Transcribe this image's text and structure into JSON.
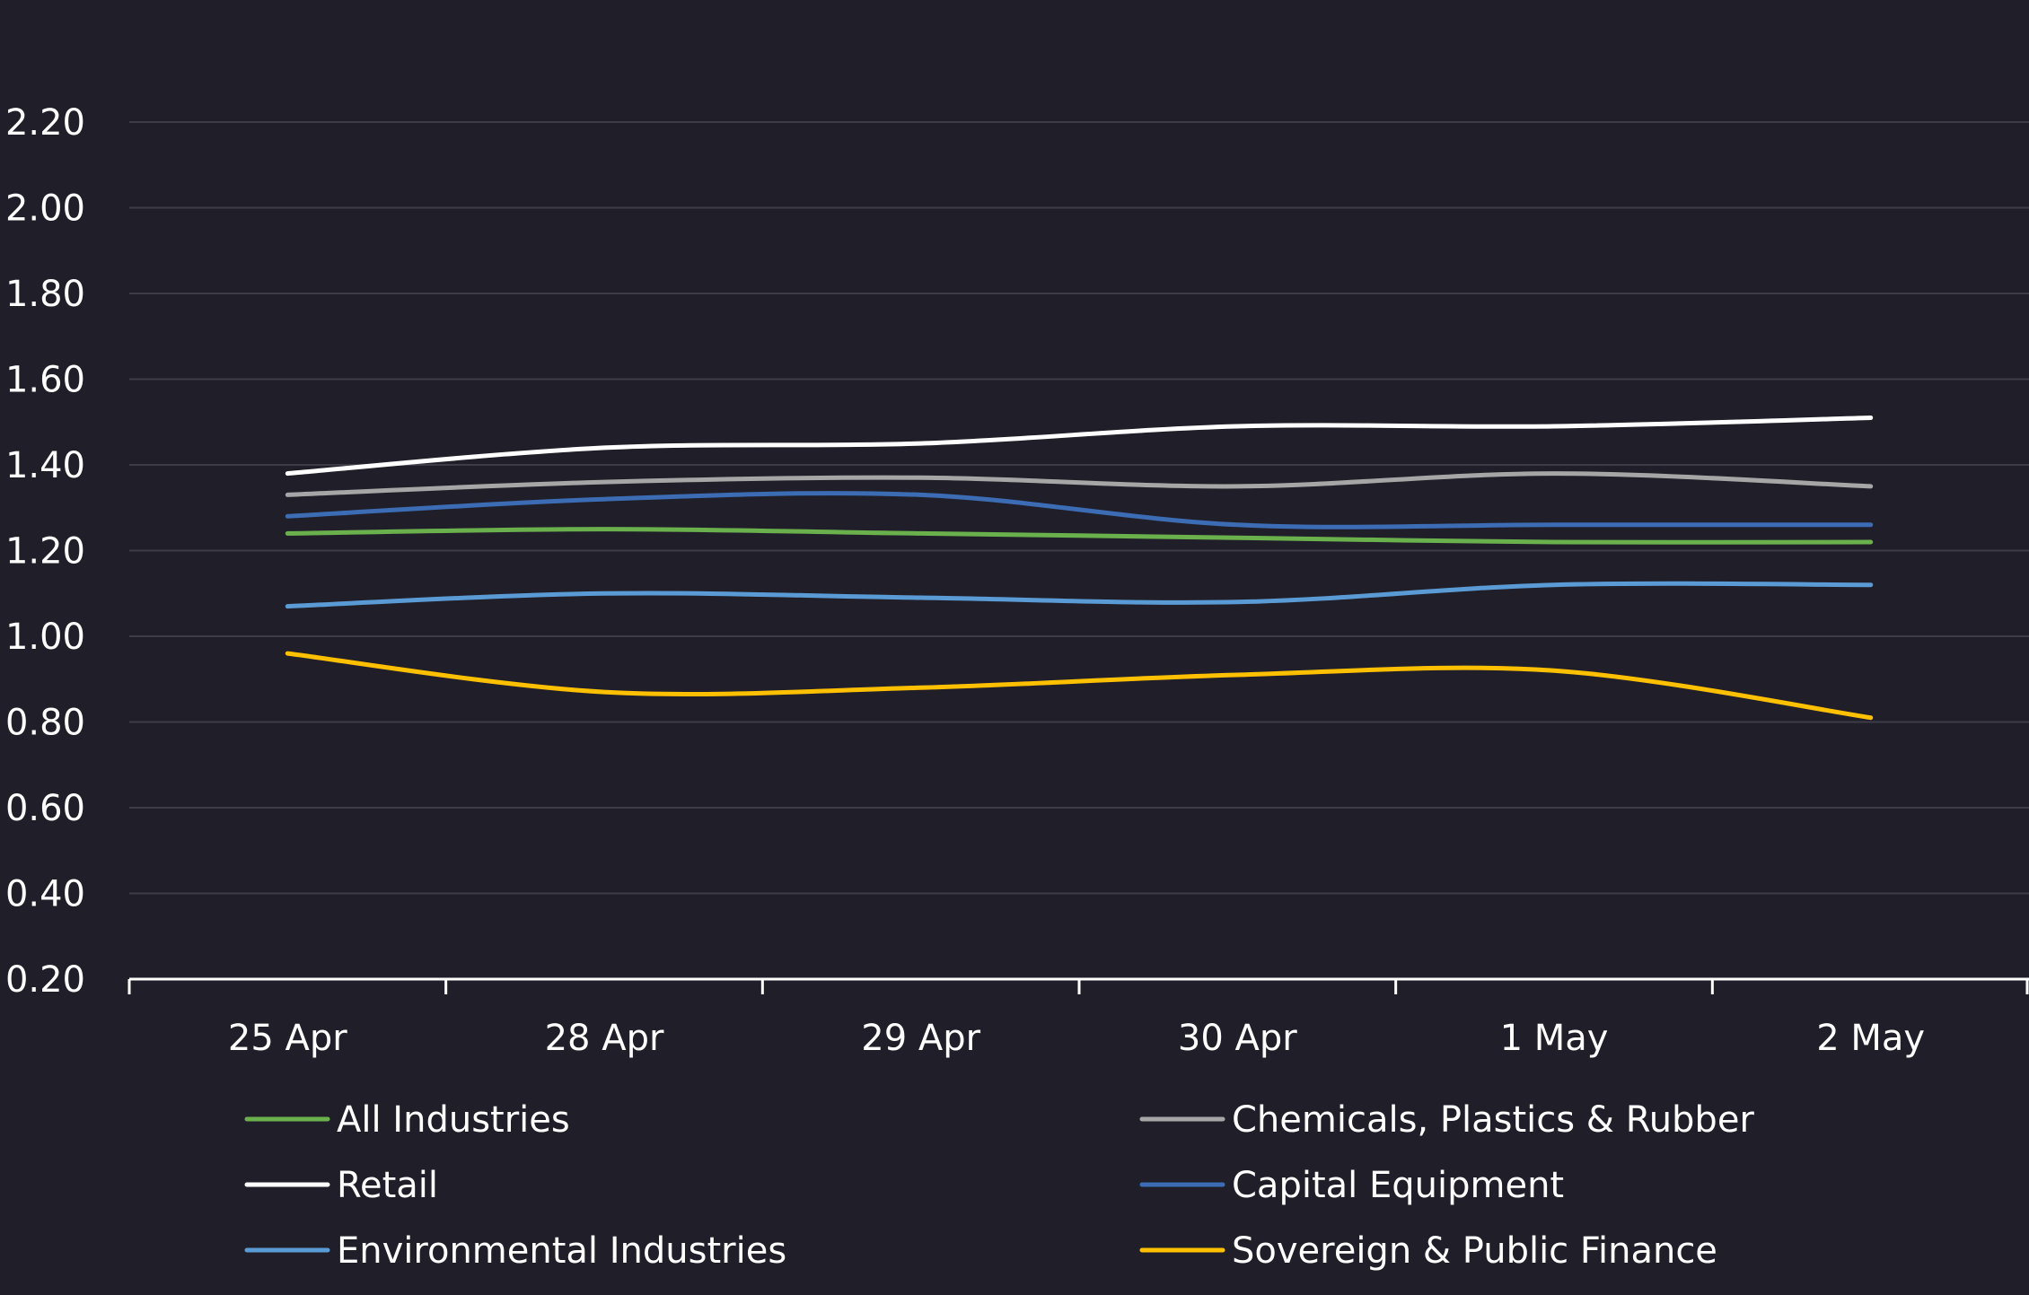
{
  "chart_data": {
    "type": "line",
    "title": "",
    "xlabel": "",
    "ylabel": "",
    "grid": true,
    "legend_position": "bottom",
    "categories": [
      "25 Apr",
      "28 Apr",
      "29 Apr",
      "30 Apr",
      "1 May",
      "2 May"
    ],
    "ylim": [
      0.2,
      2.2
    ],
    "yticks": [
      "2.20",
      "2.00",
      "1.80",
      "1.60",
      "1.40",
      "1.20",
      "1.00",
      "0.80",
      "0.60",
      "0.40",
      "0.20"
    ],
    "series": [
      {
        "name": "All Industries",
        "color": "#6ab04c",
        "values": [
          1.24,
          1.25,
          1.24,
          1.23,
          1.22,
          1.22
        ]
      },
      {
        "name": "Chemicals, Plastics & Rubber",
        "color": "#a6a6a6",
        "values": [
          1.33,
          1.36,
          1.37,
          1.35,
          1.38,
          1.35
        ]
      },
      {
        "name": "Retail",
        "color": "#ffffff",
        "values": [
          1.38,
          1.44,
          1.45,
          1.49,
          1.49,
          1.51
        ]
      },
      {
        "name": "Capital Equipment",
        "color": "#3c6cb4",
        "values": [
          1.28,
          1.32,
          1.33,
          1.26,
          1.26,
          1.26
        ]
      },
      {
        "name": "Environmental Industries",
        "color": "#5b9bd5",
        "values": [
          1.07,
          1.1,
          1.09,
          1.08,
          1.12,
          1.12
        ]
      },
      {
        "name": "Sovereign & Public Finance",
        "color": "#ffc000",
        "values": [
          0.96,
          0.87,
          0.88,
          0.91,
          0.92,
          0.81
        ]
      }
    ]
  }
}
